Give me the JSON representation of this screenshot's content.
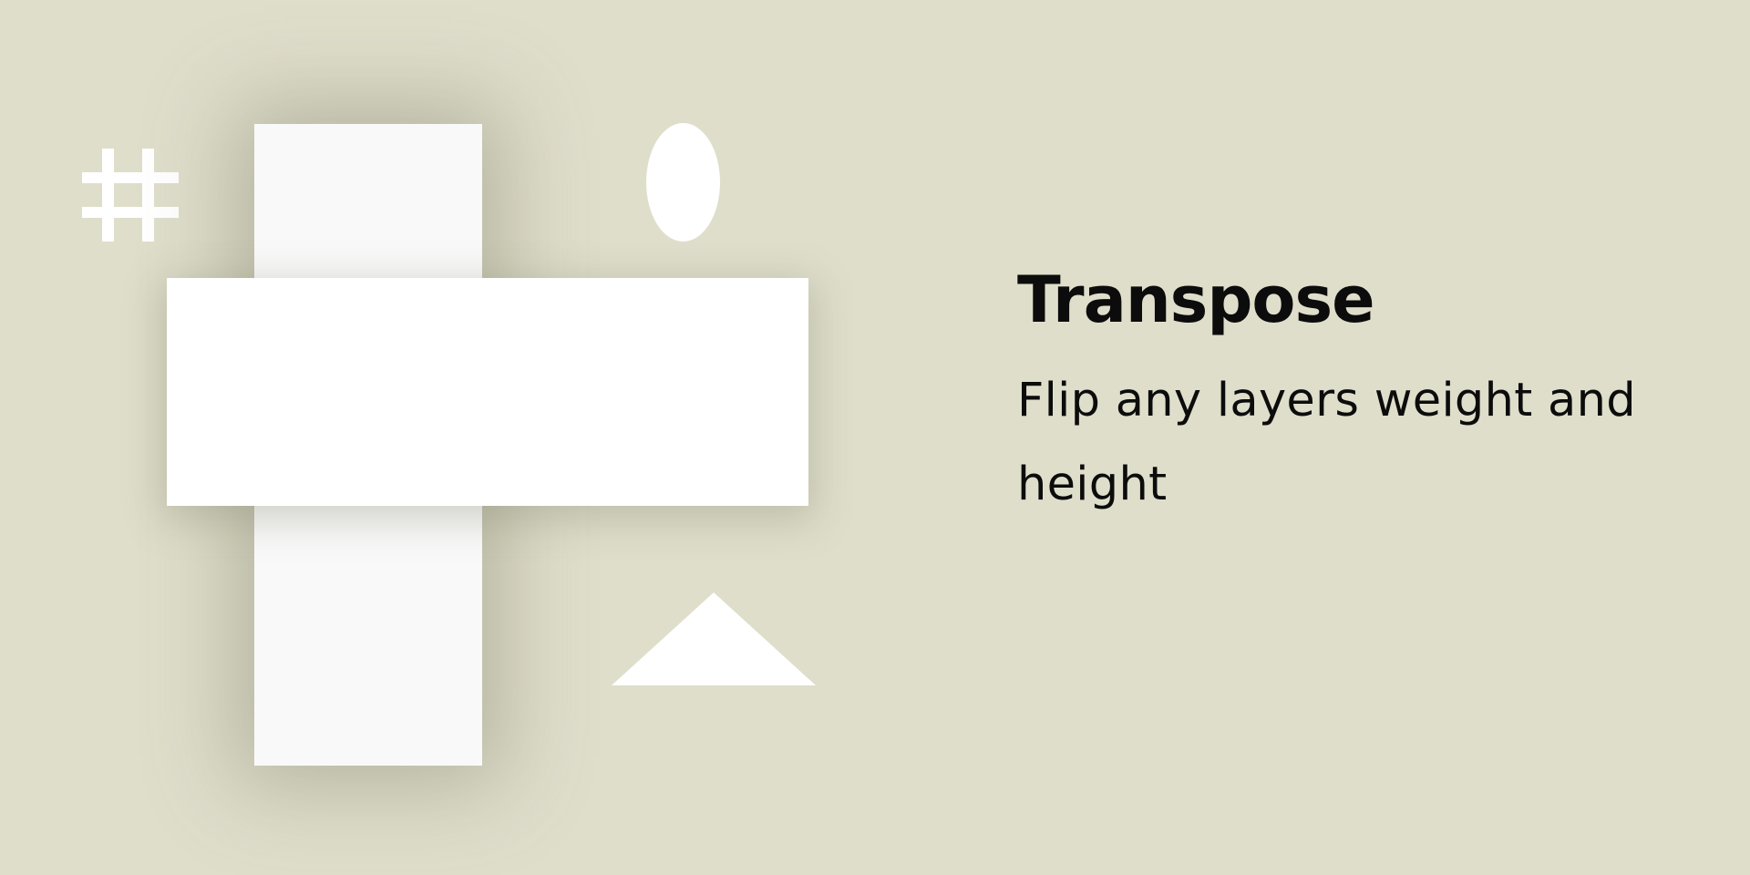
{
  "colors": {
    "background": "#dfdecb",
    "shape_fill": "#ffffff",
    "tall_rect_fill": "#f9f9f9",
    "text": "#0c0c0c"
  },
  "icons": {
    "hash": "hash-icon"
  },
  "heading": {
    "title": "Transpose",
    "description": "Flip any layers weight and height"
  }
}
